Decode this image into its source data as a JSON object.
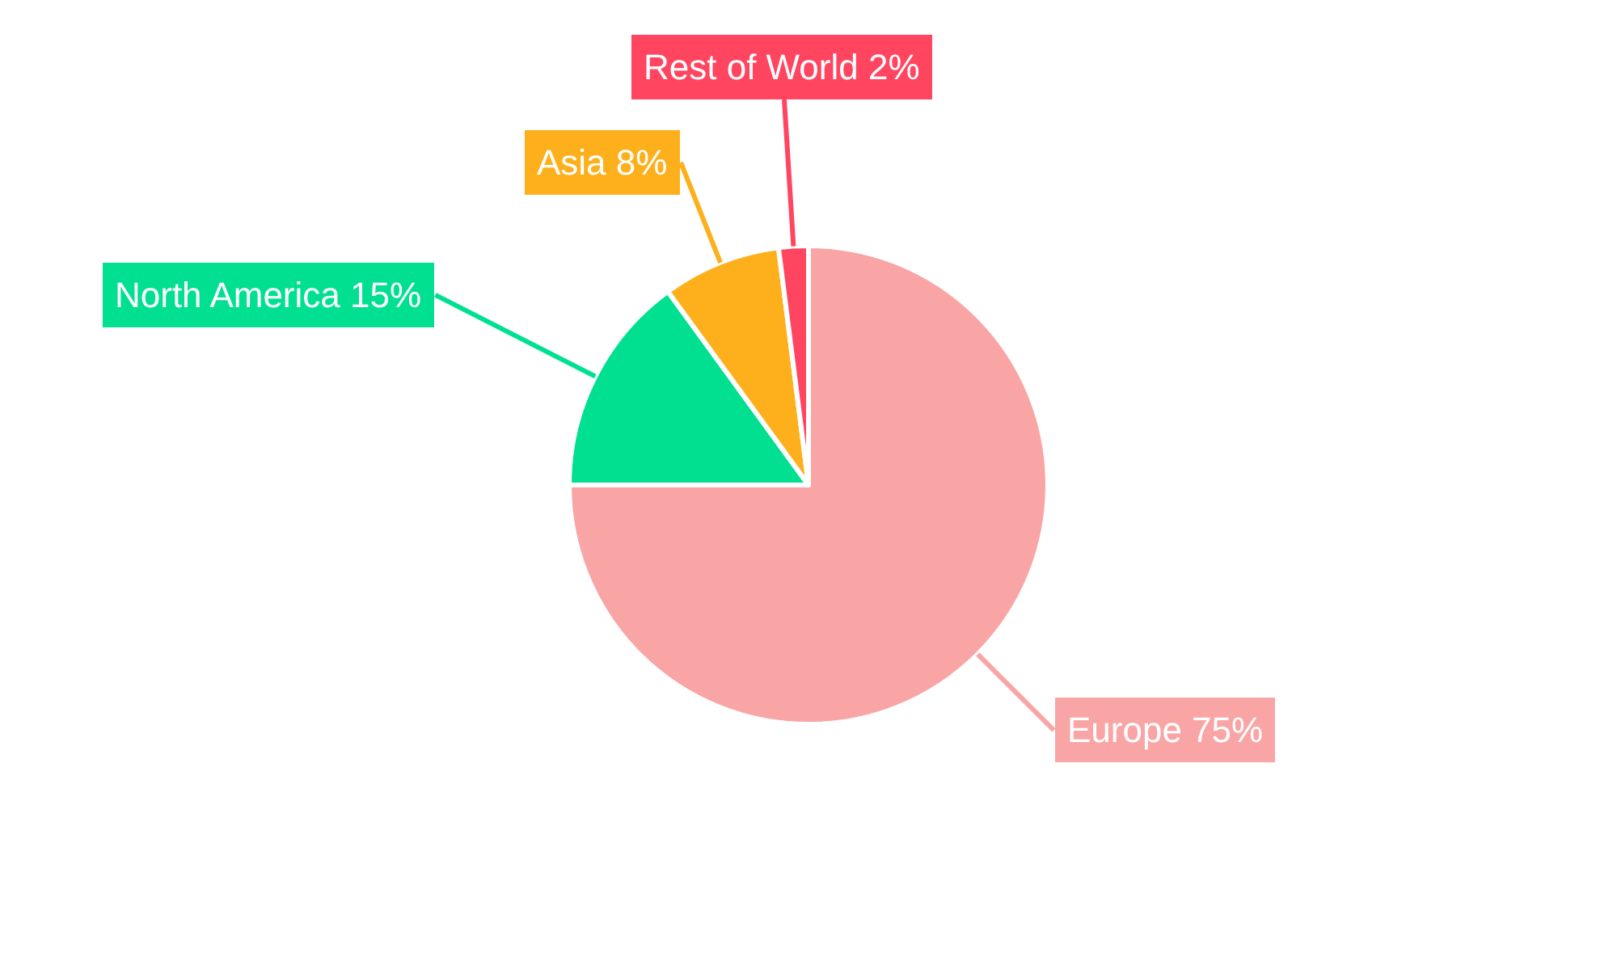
{
  "chart_data": {
    "type": "pie",
    "categories": [
      "Europe",
      "North America",
      "Asia",
      "Rest of World"
    ],
    "values": [
      75,
      15,
      8,
      2
    ],
    "colors": [
      "#f9a5a5",
      "#00e090",
      "#fdb01c",
      "#ff4560"
    ],
    "value_labels": [
      "75%",
      "15%",
      "8%",
      "2%"
    ]
  }
}
